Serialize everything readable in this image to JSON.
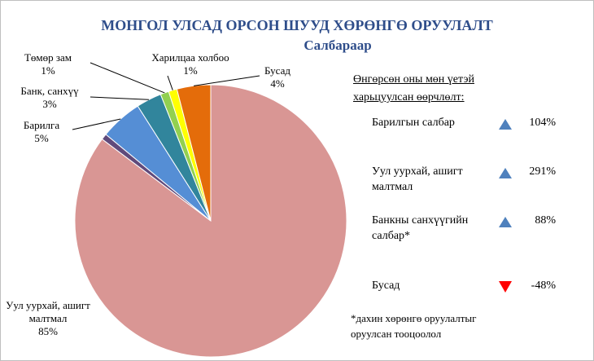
{
  "chart_data": {
    "type": "pie",
    "title": "МОНГОЛ УЛСАД ОРСОН ШУУД ХӨРӨНГӨ ОРУУЛАЛТ",
    "subtitle": "Салбараар",
    "categories": [
      "Уул уурхай, ашигт малтмал",
      null,
      "Барилга",
      "Банк, санхүү",
      "Төмөр зам",
      "Харилцаа холбоо",
      "Бусад"
    ],
    "values": [
      85,
      0.7,
      5,
      3,
      1,
      1,
      4
    ],
    "value_labels": [
      "85%",
      null,
      "5%",
      "3%",
      "1%",
      "1%",
      "4%"
    ],
    "colors": [
      "#d99694",
      "#604a7b",
      "#558ed5",
      "#31859c",
      "#92d050",
      "#ffff00",
      "#e46c0a"
    ]
  },
  "panel": {
    "title": "Өнгөрсөн оны мөн үетэй харьцуулсан өөрчлөлт:",
    "items": [
      {
        "label": "Барилгын салбар",
        "direction": "up",
        "change": "104%"
      },
      {
        "label": "Уул уурхай, ашигт малтмал",
        "direction": "up",
        "change": "291%"
      },
      {
        "label": "Банкны санхүүгийн салбар*",
        "direction": "up",
        "change": "88%"
      },
      {
        "label": "Бусад",
        "direction": "down",
        "change": "-48%"
      }
    ],
    "note": "*дахин хөрөнгө оруулалтыг оруулсан тооцоолол"
  }
}
